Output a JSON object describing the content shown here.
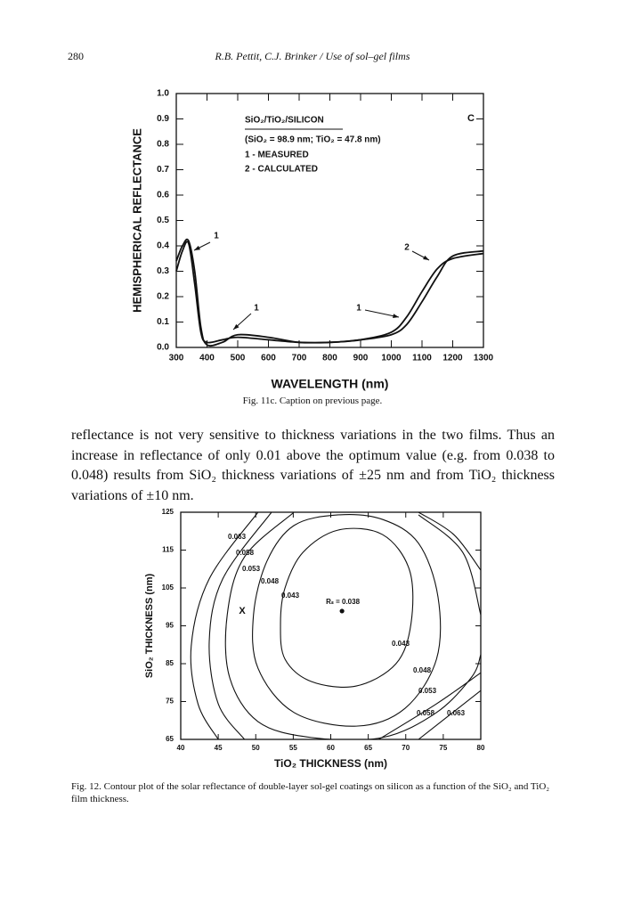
{
  "header": {
    "page_number": "280",
    "running_title": "R.B. Pettit, C.J. Brinker / Use of sol–gel films"
  },
  "body_text": "reflectance is not very sensitive to thickness variations in the two films. Thus an increase in reflectance of only 0.01 above the optimum value (e.g. from 0.038 to 0.048) results from SiO₂ thickness variations of ±25 nm and from TiO₂ thickness variations of ±10 nm.",
  "chart_data": [
    {
      "type": "line",
      "caption": "Fig. 11c. Caption on previous page.",
      "x_label": "WAVELENGTH (nm)",
      "y_label": "HEMISPHERICAL REFLECTANCE",
      "panel_label": "C",
      "annotations": [
        "SiO₂/TiO₂/SILICON",
        "(SiO₂ = 98.9 nm; TiO₂ = 47.8 nm)",
        "1 - MEASURED",
        "2 - CALCULATED"
      ],
      "callouts": [
        "1",
        "2",
        "1",
        "1"
      ],
      "xlim": [
        300,
        1300
      ],
      "xticks": [
        300,
        400,
        500,
        600,
        700,
        800,
        900,
        1000,
        1100,
        1200,
        1300
      ],
      "ylim": [
        0,
        1
      ],
      "yticks": [
        {
          "value": 0,
          "label": "0.0"
        },
        0.1,
        0.2,
        0.3,
        0.4,
        0.5,
        0.6,
        0.7,
        0.8,
        0.9,
        {
          "value": 1,
          "label": "1.0"
        }
      ],
      "x": [
        300,
        320,
        340,
        360,
        380,
        400,
        450,
        500,
        600,
        700,
        800,
        900,
        1000,
        1050,
        1100,
        1150,
        1200,
        1300
      ],
      "series": [
        {
          "color": "#111111",
          "values": [
            0.3,
            0.38,
            0.41,
            0.25,
            0.06,
            0.02,
            0.03,
            0.04,
            0.03,
            0.02,
            0.02,
            0.03,
            0.06,
            0.12,
            0.22,
            0.31,
            0.35,
            0.37
          ]
        },
        {
          "color": "#111111",
          "values": [
            0.34,
            0.4,
            0.42,
            0.3,
            0.08,
            0.01,
            0.02,
            0.05,
            0.04,
            0.02,
            0.02,
            0.03,
            0.05,
            0.09,
            0.18,
            0.28,
            0.36,
            0.38
          ]
        }
      ]
    },
    {
      "type": "contour",
      "caption": "Fig. 12. Contour plot of the solar reflectance of double-layer sol-gel coatings on silicon as a function of the SiO₂ and TiO₂ film thickness.",
      "x_label": "TiO₂ THICKNESS (nm)",
      "y_label": "SiO₂ THICKNESS (nm)",
      "xlim": [
        40,
        80
      ],
      "xticks": [
        40,
        45,
        50,
        55,
        60,
        65,
        70,
        75,
        80
      ],
      "ylim": [
        65,
        125
      ],
      "yticks": [
        65,
        75,
        85,
        95,
        105,
        115,
        125
      ],
      "color": "#111111",
      "contours": [
        {
          "level": 0.043,
          "closed": true,
          "x": [
            53.9,
            53.3,
            53.9,
            57.4,
            63.4,
            68.7,
            70.7,
            70.5,
            66.9,
            61.0,
            56.3
          ],
          "y": [
            105.0,
            95.6,
            86.2,
            80.3,
            79.1,
            85.0,
            95.6,
            109.7,
            119.1,
            120.3,
            114.4
          ]
        },
        {
          "level": 0.048,
          "closed": true,
          "x": [
            55.1,
            51.5,
            49.7,
            50.3,
            55.1,
            63.4,
            69.9,
            74.1,
            74.3,
            71.7,
            66.9,
            61.0
          ],
          "y": [
            121.5,
            112.1,
            97.9,
            83.8,
            72.1,
            68.5,
            73.2,
            86.2,
            102.6,
            116.8,
            123.1,
            124.3
          ]
        },
        {
          "level": 0.053,
          "closed": false,
          "x": [
            55.1,
            48.5,
            46.2,
            46.5,
            50.3,
            57.4,
            66.9,
            74.1,
            78.8,
            80.0,
            null,
            80.0,
            77.6,
            71.7
          ],
          "y": [
            125.0,
            113.2,
            97.9,
            81.5,
            69.7,
            65.5,
            65.5,
            72.1,
            81.5,
            87.4,
            null,
            97.9,
            114.4,
            124.3
          ]
        },
        {
          "level": 0.058,
          "closed": false,
          "x": [
            52.1,
            45.6,
            43.8,
            45.0,
            48.5,
            null,
            66.4,
            74.1,
            80.0
          ],
          "y": [
            125.0,
            107.4,
            90.9,
            74.4,
            65.0,
            null,
            65.0,
            74.4,
            82.6
          ]
        },
        {
          "level": 0.063,
          "closed": false,
          "x": [
            50.3,
            43.8,
            41.4,
            42.3,
            45.0,
            null,
            71.7,
            80.0,
            null,
            71.7,
            76.4,
            80.0
          ],
          "y": [
            125.0,
            107.4,
            89.7,
            74.4,
            65.0,
            null,
            65.0,
            77.9,
            null,
            125.0,
            119.1,
            109.7
          ]
        }
      ],
      "minimum": {
        "x": 61.5,
        "y": 98.9,
        "label": "Rₛ = 0.038"
      },
      "marker": {
        "x": 48.2,
        "y": 98.9,
        "label": "X"
      }
    }
  ]
}
